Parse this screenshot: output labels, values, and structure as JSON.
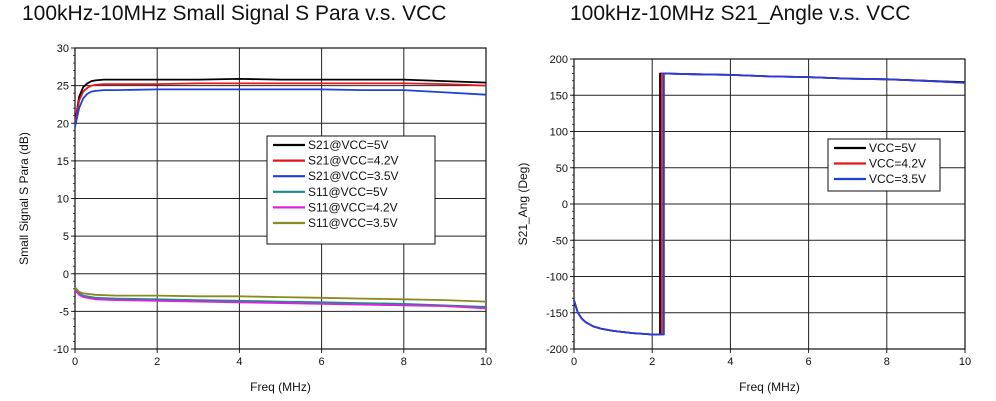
{
  "chart_data": [
    {
      "type": "line",
      "title": "100kHz-10MHz Small Signal S Para v.s. VCC",
      "xlabel": "Freq (MHz)",
      "ylabel": "Small Signal S Para (dB)",
      "xlim": [
        0,
        10
      ],
      "ylim": [
        -10,
        30
      ],
      "x_ticks": [
        "0",
        "2",
        "4",
        "6",
        "8",
        "10"
      ],
      "y_ticks": [
        "-10",
        "-5",
        "0",
        "5",
        "10",
        "15",
        "20",
        "25",
        "30"
      ],
      "grid": true,
      "legend_position": "right-middle",
      "series": [
        {
          "name": "S21@VCC=5V",
          "color": "#000000",
          "x": [
            0.0,
            0.1,
            0.2,
            0.3,
            0.4,
            0.5,
            0.7,
            1.0,
            2.0,
            3.0,
            4.0,
            5.0,
            6.0,
            7.0,
            8.0,
            9.0,
            10.0
          ],
          "y": [
            20.0,
            23.5,
            24.8,
            25.3,
            25.6,
            25.7,
            25.8,
            25.8,
            25.8,
            25.8,
            25.9,
            25.8,
            25.8,
            25.8,
            25.8,
            25.6,
            25.4
          ]
        },
        {
          "name": "S21@VCC=4.2V",
          "color": "#e8141c",
          "x": [
            0.0,
            0.1,
            0.2,
            0.3,
            0.4,
            0.5,
            0.7,
            1.0,
            2.0,
            3.0,
            4.0,
            5.0,
            6.0,
            7.0,
            8.0,
            9.0,
            10.0
          ],
          "y": [
            20.0,
            23.0,
            24.2,
            24.7,
            25.0,
            25.1,
            25.2,
            25.2,
            25.2,
            25.3,
            25.3,
            25.3,
            25.3,
            25.3,
            25.3,
            25.2,
            25.0
          ]
        },
        {
          "name": "S21@VCC=3.5V",
          "color": "#1f3fe0",
          "x": [
            0.0,
            0.1,
            0.2,
            0.3,
            0.4,
            0.5,
            0.7,
            1.0,
            2.0,
            3.0,
            4.0,
            5.0,
            6.0,
            7.0,
            8.0,
            9.0,
            10.0
          ],
          "y": [
            19.5,
            22.0,
            23.3,
            23.9,
            24.2,
            24.3,
            24.4,
            24.4,
            24.5,
            24.5,
            24.5,
            24.5,
            24.5,
            24.4,
            24.4,
            24.1,
            23.8
          ]
        },
        {
          "name": "S11@VCC=5V",
          "color": "#1a8a8a",
          "x": [
            0.0,
            0.1,
            0.2,
            0.5,
            1.0,
            2.0,
            3.0,
            4.0,
            5.0,
            6.0,
            7.0,
            8.0,
            9.0,
            10.0
          ],
          "y": [
            -2.0,
            -2.6,
            -2.9,
            -3.2,
            -3.3,
            -3.4,
            -3.5,
            -3.6,
            -3.7,
            -3.8,
            -3.9,
            -4.0,
            -4.2,
            -4.4
          ]
        },
        {
          "name": "S11@VCC=4.2V",
          "color": "#e020e0",
          "x": [
            0.0,
            0.1,
            0.2,
            0.5,
            1.0,
            2.0,
            3.0,
            4.0,
            5.0,
            6.0,
            7.0,
            8.0,
            9.0,
            10.0
          ],
          "y": [
            -2.2,
            -2.8,
            -3.1,
            -3.4,
            -3.5,
            -3.6,
            -3.7,
            -3.8,
            -3.9,
            -4.0,
            -4.1,
            -4.2,
            -4.3,
            -4.6
          ]
        },
        {
          "name": "S11@VCC=3.5V",
          "color": "#8a8a1e",
          "x": [
            0.0,
            0.1,
            0.2,
            0.5,
            1.0,
            2.0,
            3.0,
            4.0,
            5.0,
            6.0,
            7.0,
            8.0,
            9.0,
            10.0
          ],
          "y": [
            -1.8,
            -2.4,
            -2.6,
            -2.8,
            -2.9,
            -2.9,
            -3.0,
            -3.0,
            -3.1,
            -3.2,
            -3.3,
            -3.4,
            -3.5,
            -3.7
          ]
        }
      ]
    },
    {
      "type": "line",
      "title": "100kHz-10MHz S21_Angle v.s. VCC",
      "xlabel": "Freq (MHz)",
      "ylabel": "S21_Ang (Deg)",
      "xlim": [
        0,
        10
      ],
      "ylim": [
        -200,
        200
      ],
      "x_ticks": [
        "0",
        "2",
        "4",
        "6",
        "8",
        "10"
      ],
      "y_ticks": [
        "-200",
        "-150",
        "-100",
        "-50",
        "0",
        "50",
        "100",
        "150",
        "200"
      ],
      "grid": true,
      "legend_position": "right-middle",
      "series": [
        {
          "name": "VCC=5V",
          "color": "#000000",
          "x": [
            0.0,
            0.1,
            0.2,
            0.3,
            0.5,
            0.7,
            1.0,
            1.5,
            2.0,
            2.2,
            2.2,
            2.3,
            3.0,
            4.0,
            5.0,
            6.0,
            7.0,
            8.0,
            9.0,
            10.0
          ],
          "y": [
            -133,
            -150,
            -158,
            -163,
            -169,
            -172,
            -175,
            -178,
            -180,
            -180,
            180,
            180,
            179,
            178,
            176,
            175,
            173,
            172,
            170,
            168
          ]
        },
        {
          "name": "VCC=4.2V",
          "color": "#e8141c",
          "x": [
            0.0,
            0.1,
            0.2,
            0.3,
            0.5,
            0.7,
            1.0,
            1.5,
            2.0,
            2.25,
            2.25,
            2.3,
            3.0,
            4.0,
            5.0,
            6.0,
            7.0,
            8.0,
            9.0,
            10.0
          ],
          "y": [
            -133,
            -150,
            -158,
            -163,
            -169,
            -172,
            -175,
            -178,
            -180,
            -180,
            180,
            180,
            179,
            178,
            176,
            175,
            173,
            172,
            170,
            167
          ]
        },
        {
          "name": "VCC=3.5V",
          "color": "#1f3fe0",
          "x": [
            0.0,
            0.1,
            0.2,
            0.3,
            0.5,
            0.7,
            1.0,
            1.5,
            2.0,
            2.3,
            2.3,
            2.35,
            3.0,
            4.0,
            5.0,
            6.0,
            7.0,
            8.0,
            9.0,
            10.0
          ],
          "y": [
            -133,
            -150,
            -158,
            -163,
            -169,
            -172,
            -175,
            -178,
            -180,
            -180,
            180,
            180,
            179,
            178,
            176,
            175,
            173,
            172,
            170,
            167
          ]
        }
      ]
    }
  ]
}
